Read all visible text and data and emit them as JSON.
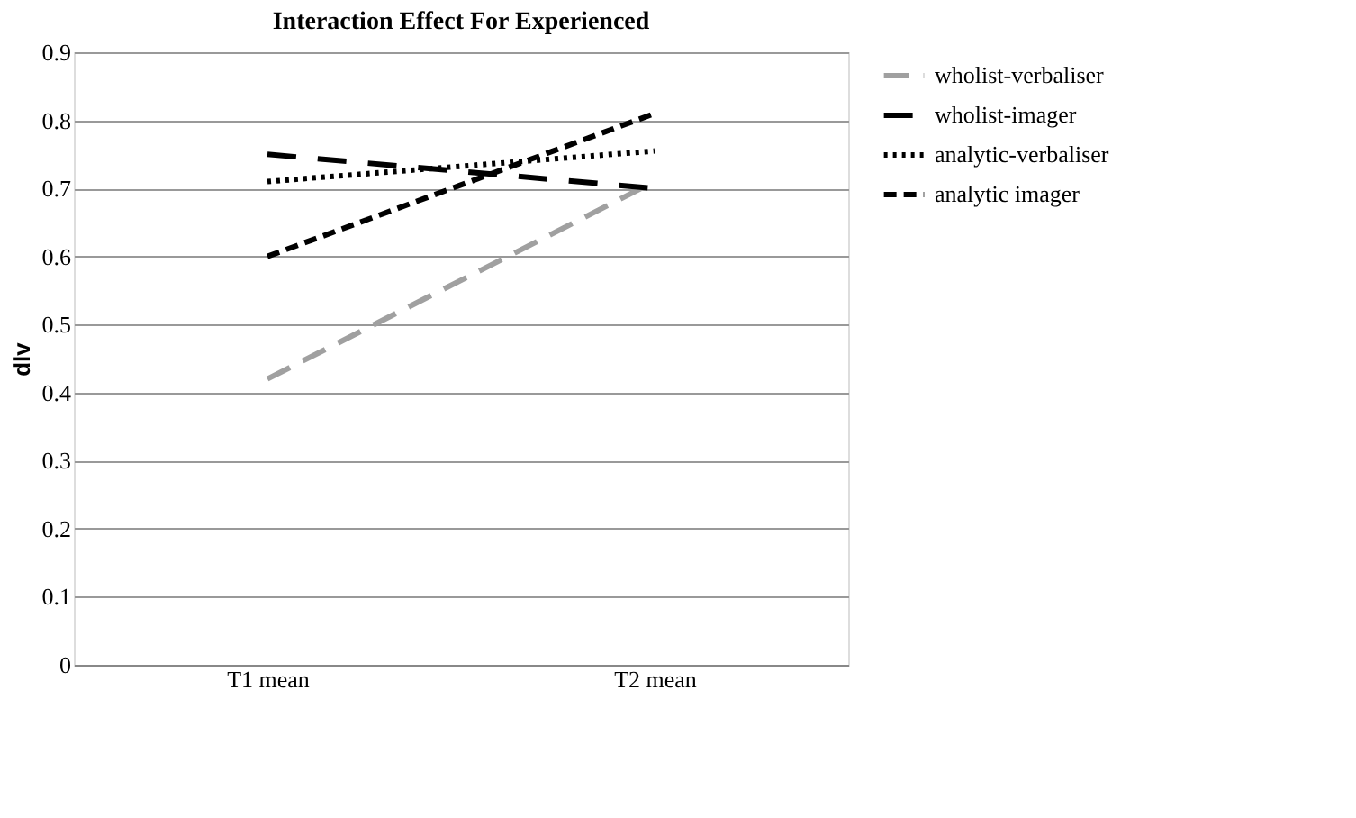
{
  "chart_data": {
    "type": "line",
    "title": "Interaction Effect For Experienced",
    "ylabel": "dlv",
    "categories": [
      "T1 mean",
      "T2 mean"
    ],
    "series": [
      {
        "name": "wholist-verbaliser",
        "color": "#a0a0a0",
        "line_style": "dashed",
        "values": [
          0.42,
          0.71
        ]
      },
      {
        "name": "wholist-imager",
        "color": "#000000",
        "line_style": "dashed",
        "values": [
          0.75,
          0.7
        ]
      },
      {
        "name": "analytic-verbaliser",
        "color": "#000000",
        "line_style": "dotted",
        "values": [
          0.71,
          0.755
        ]
      },
      {
        "name": "analytic imager",
        "color": "#000000",
        "line_style": "dashed",
        "values": [
          0.6,
          0.81
        ]
      }
    ],
    "ylim": [
      0,
      0.9
    ],
    "yticks": [
      0,
      0.1,
      0.2,
      0.3,
      0.4,
      0.5,
      0.6,
      0.7,
      0.8,
      0.9
    ],
    "grid": "y",
    "legend": "right",
    "marker": "none"
  }
}
